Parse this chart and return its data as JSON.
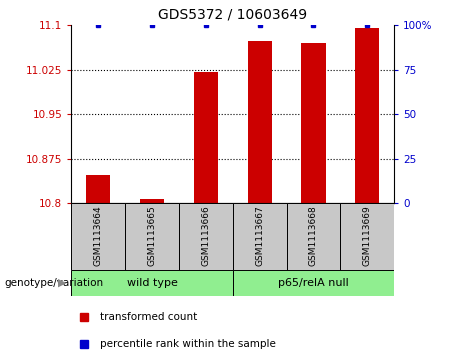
{
  "title": "GDS5372 / 10603649",
  "samples": [
    "GSM1113664",
    "GSM1113665",
    "GSM1113666",
    "GSM1113667",
    "GSM1113668",
    "GSM1113669"
  ],
  "red_values": [
    10.847,
    10.808,
    11.022,
    11.073,
    11.07,
    11.095
  ],
  "blue_values": [
    100,
    100,
    100,
    100,
    100,
    100
  ],
  "ymin": 10.8,
  "ymax": 11.1,
  "yticks": [
    10.8,
    10.875,
    10.95,
    11.025,
    11.1
  ],
  "ytick_labels": [
    "10.8",
    "10.875",
    "10.95",
    "11.025",
    "11.1"
  ],
  "y2min": 0,
  "y2max": 100,
  "y2ticks": [
    0,
    25,
    50,
    75,
    100
  ],
  "y2tick_labels": [
    "0",
    "25",
    "50",
    "75",
    "100%"
  ],
  "group_label": "genotype/variation",
  "group1_label": "wild type",
  "group2_label": "p65/relA null",
  "group_color": "#90EE90",
  "bar_color": "#CC0000",
  "dot_color": "#0000CC",
  "sample_bg_color": "#C8C8C8",
  "bar_width": 0.45,
  "legend_red": "transformed count",
  "legend_blue": "percentile rank within the sample"
}
